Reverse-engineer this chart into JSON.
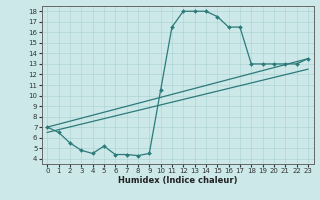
{
  "xlabel": "Humidex (Indice chaleur)",
  "bg_color": "#cce8e8",
  "grid_color": "#aed4d4",
  "line_color": "#2d7a7a",
  "xlim": [
    -0.5,
    23.5
  ],
  "ylim": [
    3.5,
    18.5
  ],
  "xticks": [
    0,
    1,
    2,
    3,
    4,
    5,
    6,
    7,
    8,
    9,
    10,
    11,
    12,
    13,
    14,
    15,
    16,
    17,
    18,
    19,
    20,
    21,
    22,
    23
  ],
  "yticks": [
    4,
    5,
    6,
    7,
    8,
    9,
    10,
    11,
    12,
    13,
    14,
    15,
    16,
    17,
    18
  ],
  "curve1_x": [
    0,
    1,
    2,
    3,
    4,
    5,
    6,
    7,
    8,
    9,
    10,
    11,
    12,
    13,
    14,
    15,
    16,
    17,
    18,
    19,
    20,
    21,
    22,
    23
  ],
  "curve1_y": [
    7.0,
    6.5,
    5.5,
    4.8,
    4.5,
    5.2,
    4.4,
    4.4,
    4.3,
    4.5,
    10.5,
    16.5,
    18.0,
    18.0,
    18.0,
    17.5,
    16.5,
    16.5,
    13.0,
    13.0,
    13.0,
    13.0,
    13.0,
    13.5
  ],
  "curve2_x": [
    0,
    23
  ],
  "curve2_y": [
    7.0,
    13.5
  ],
  "curve3_x": [
    0,
    23
  ],
  "curve3_y": [
    6.5,
    12.5
  ]
}
